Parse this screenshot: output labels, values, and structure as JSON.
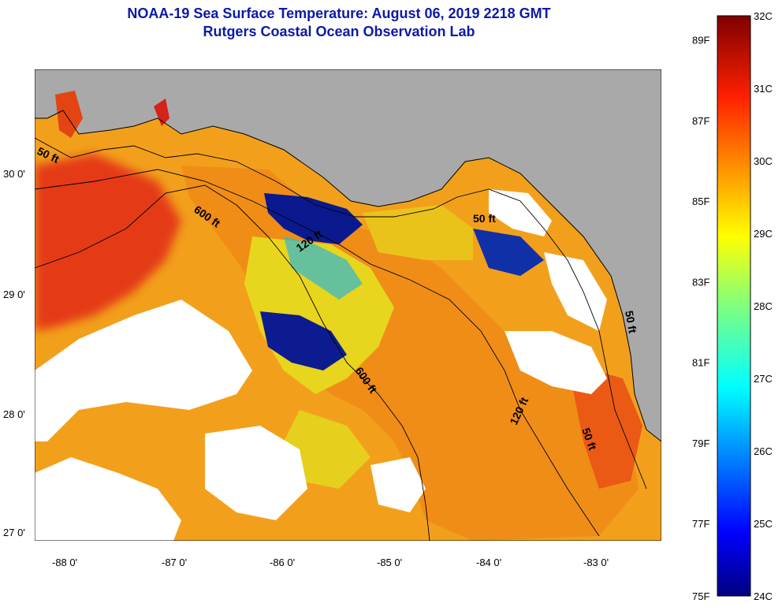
{
  "title": {
    "line1": "NOAA-19 Sea Surface Temperature:  August 06, 2019 2218 GMT",
    "line2": "Rutgers Coastal Ocean Observation Lab"
  },
  "axes": {
    "longitude_ticks": [
      "-88 0'",
      "-87 0'",
      "-86 0'",
      "-85 0'",
      "-84 0'",
      "-83 0'"
    ],
    "latitude_ticks": [
      "30 0'",
      "29 0'",
      "28 0'",
      "27 0'"
    ]
  },
  "colorbar": {
    "fahrenheit_labels": [
      "89F",
      "87F",
      "85F",
      "83F",
      "81F",
      "79F",
      "77F",
      "75F"
    ],
    "celsius_labels": [
      "32C",
      "31C",
      "30C",
      "29C",
      "28C",
      "27C",
      "26C",
      "25C",
      "24C"
    ],
    "min_c": 24,
    "max_c": 32
  },
  "contours": {
    "labels": [
      "50 ft",
      "600 ft",
      "120 ft",
      "50 ft",
      "600 ft",
      "120 ft",
      "50 ft",
      "50 ft"
    ]
  },
  "colors": {
    "title": "#0b1aa6",
    "land": "#a9a9a9",
    "cloud": "#ffffff",
    "warm": "#e53a10",
    "orange": "#f49a16",
    "yellow": "#e9dc1a",
    "cold": "#0a1a8e"
  }
}
